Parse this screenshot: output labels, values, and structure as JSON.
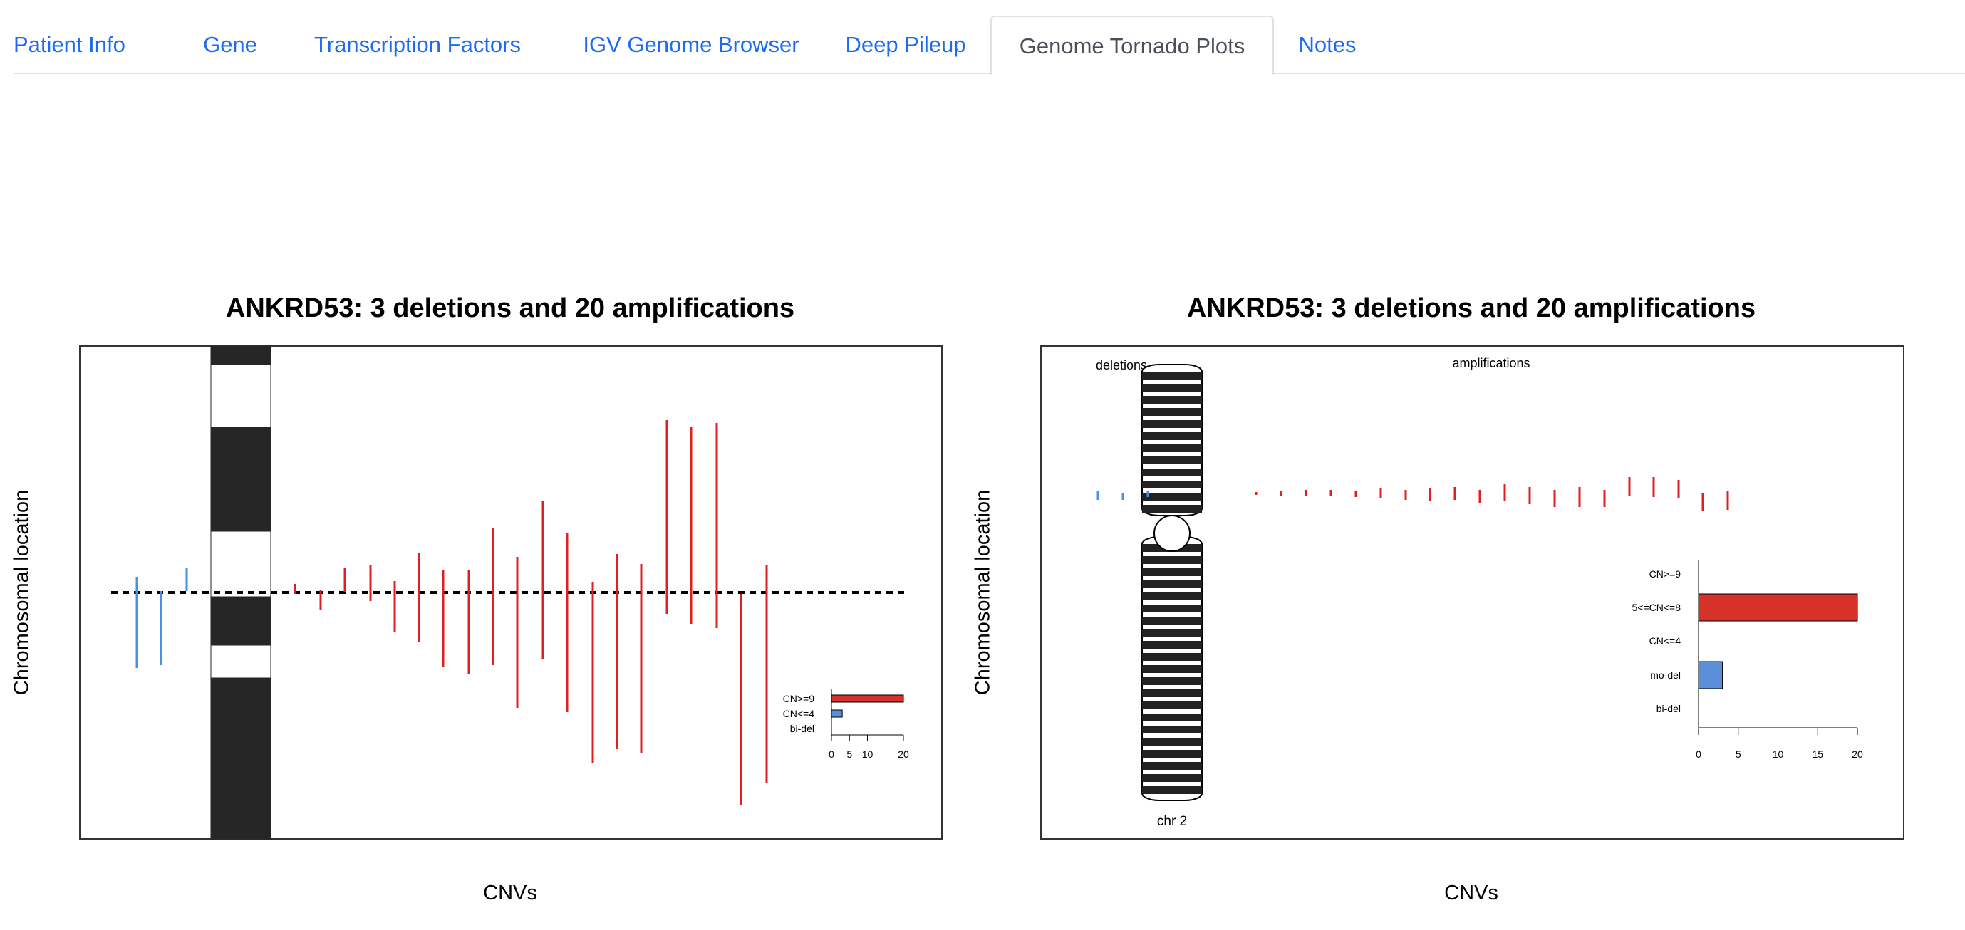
{
  "tabs": [
    {
      "label": "Patient Info",
      "active": false
    },
    {
      "label": "Gene",
      "active": false
    },
    {
      "label": "Transcription Factors",
      "active": false
    },
    {
      "label": "IGV Genome Browser",
      "active": false
    },
    {
      "label": "Deep Pileup",
      "active": false
    },
    {
      "label": "Genome Tornado Plots",
      "active": true
    },
    {
      "label": "Notes",
      "active": false
    }
  ],
  "colors": {
    "deletion": "#4a90e2",
    "amplification": "#e02020",
    "bar_amp": "#d6312a",
    "bar_del": "#5b8fd9"
  },
  "chart_data": [
    {
      "type": "bar",
      "title": "ANKRD53: 3 deletions and 20 amplifications",
      "ylabel": "Chromosomal location",
      "xlabel": "CNVs",
      "deletions": 3,
      "amplifications": 20,
      "legend": {
        "categories": [
          "CN>=9",
          "CN<=4",
          "bi-del"
        ],
        "values": [
          20,
          3,
          0
        ],
        "ticks": [
          0,
          5,
          10,
          20
        ]
      }
    },
    {
      "type": "bar",
      "title": "ANKRD53: 3 deletions and 20 amplifications",
      "ylabel": "Chromosomal location",
      "xlabel": "CNVs",
      "region_labels": {
        "deletions": "deletions",
        "amplifications": "amplifications"
      },
      "chromosome": "chr 2",
      "legend": {
        "categories": [
          "CN>=9",
          "5<=CN<=8",
          "CN<=4",
          "mo-del",
          "bi-del"
        ],
        "values": [
          0,
          20,
          0,
          3,
          0
        ],
        "ticks": [
          0,
          5,
          10,
          15,
          20
        ]
      }
    }
  ]
}
